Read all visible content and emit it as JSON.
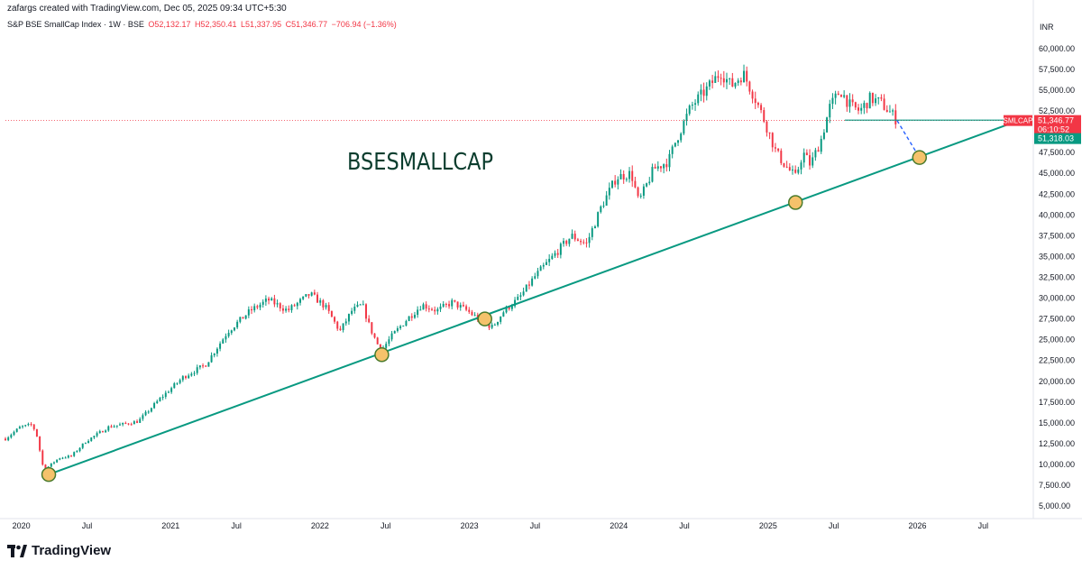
{
  "header": {
    "credit": "zafargs created with TradingView.com, Dec 05, 2025 09:34 UTC+5:30"
  },
  "legend": {
    "symbol": "S&P BSE SmallCap Index · 1W · BSE",
    "open": "O52,132.17",
    "high": "H52,350.41",
    "low": "L51,337.95",
    "close": "C51,346.77",
    "change": "−706.94 (−1.36%)"
  },
  "currency": "INR",
  "footer": {
    "brand": "TradingView"
  },
  "colors": {
    "up": "#089981",
    "down": "#f23645",
    "trendline": "#089981",
    "horizontal": "#089981",
    "projection": "#2962ff",
    "marker_fill": "#f5c26b",
    "marker_stroke": "#4a7a2b",
    "annotation": "#0b3d2e"
  },
  "chart_data": {
    "type": "candlestick",
    "annotation": "BSESMALLCAP",
    "ylim": [
      3500,
      61500
    ],
    "y_ticks": [
      "5,000.00",
      "7,500.00",
      "10,000.00",
      "12,500.00",
      "15,000.00",
      "17,500.00",
      "20,000.00",
      "22,500.00",
      "25,000.00",
      "27,500.00",
      "30,000.00",
      "32,500.00",
      "35,000.00",
      "37,500.00",
      "40,000.00",
      "42,500.00",
      "45,000.00",
      "47,500.00",
      "50,000.00",
      "52,500.00",
      "55,000.00",
      "57,500.00",
      "60,000.00"
    ],
    "x_ticks": [
      {
        "label": "2020",
        "date": 2020.0
      },
      {
        "label": "Jul",
        "date": 2020.5
      },
      {
        "label": "2021",
        "date": 2021.0
      },
      {
        "label": "Jul",
        "date": 2021.5
      },
      {
        "label": "2022",
        "date": 2022.0
      },
      {
        "label": "Jul",
        "date": 2022.5
      },
      {
        "label": "2023",
        "date": 2023.0
      },
      {
        "label": "Jul",
        "date": 2023.5
      },
      {
        "label": "2024",
        "date": 2024.0
      },
      {
        "label": "Jul",
        "date": 2024.5
      },
      {
        "label": "2025",
        "date": 2025.0
      },
      {
        "label": "Jul",
        "date": 2025.5
      },
      {
        "label": "2026",
        "date": 2026.0
      },
      {
        "label": "Jul",
        "date": 2026.5
      }
    ],
    "x_range": [
      2019.96,
      2026.83
    ],
    "price_path": [
      [
        2019.96,
        13100
      ],
      [
        2020.06,
        14500
      ],
      [
        2020.14,
        14800
      ],
      [
        2020.17,
        13500
      ],
      [
        2020.22,
        9000
      ],
      [
        2020.25,
        9800
      ],
      [
        2020.32,
        10800
      ],
      [
        2020.4,
        11000
      ],
      [
        2020.5,
        12800
      ],
      [
        2020.65,
        14500
      ],
      [
        2020.85,
        15200
      ],
      [
        2021.0,
        18000
      ],
      [
        2021.15,
        20500
      ],
      [
        2021.3,
        22000
      ],
      [
        2021.45,
        26000
      ],
      [
        2021.6,
        28500
      ],
      [
        2021.72,
        29800
      ],
      [
        2021.85,
        28500
      ],
      [
        2022.0,
        30500
      ],
      [
        2022.1,
        29000
      ],
      [
        2022.2,
        26000
      ],
      [
        2022.28,
        28500
      ],
      [
        2022.35,
        29200
      ],
      [
        2022.4,
        26500
      ],
      [
        2022.45,
        24500
      ],
      [
        2022.48,
        23800
      ],
      [
        2022.55,
        25500
      ],
      [
        2022.65,
        27500
      ],
      [
        2022.75,
        29200
      ],
      [
        2022.85,
        28500
      ],
      [
        2022.95,
        29500
      ],
      [
        2023.05,
        28500
      ],
      [
        2023.15,
        27200
      ],
      [
        2023.22,
        26500
      ],
      [
        2023.3,
        28500
      ],
      [
        2023.4,
        30000
      ],
      [
        2023.5,
        32500
      ],
      [
        2023.65,
        35500
      ],
      [
        2023.75,
        37500
      ],
      [
        2023.85,
        36500
      ],
      [
        2023.95,
        41000
      ],
      [
        2024.05,
        44500
      ],
      [
        2024.15,
        45000
      ],
      [
        2024.2,
        41500
      ],
      [
        2024.3,
        45500
      ],
      [
        2024.4,
        46500
      ],
      [
        2024.45,
        49000
      ],
      [
        2024.55,
        53000
      ],
      [
        2024.65,
        55000
      ],
      [
        2024.75,
        57200
      ],
      [
        2024.82,
        55500
      ],
      [
        2024.9,
        57000
      ],
      [
        2024.98,
        54000
      ],
      [
        2025.05,
        51000
      ],
      [
        2025.12,
        47500
      ],
      [
        2025.18,
        46000
      ],
      [
        2025.25,
        44500
      ],
      [
        2025.3,
        47500
      ],
      [
        2025.35,
        46000
      ],
      [
        2025.42,
        49000
      ],
      [
        2025.48,
        53000
      ],
      [
        2025.55,
        55000
      ],
      [
        2025.62,
        53000
      ],
      [
        2025.68,
        52500
      ],
      [
        2025.75,
        54000
      ],
      [
        2025.82,
        53500
      ],
      [
        2025.9,
        52000
      ],
      [
        2025.93,
        51346.77
      ]
    ],
    "trendline": {
      "points": [
        [
          2020.25,
          8800
        ],
        [
          2022.48,
          23200
        ],
        [
          2023.17,
          27500
        ],
        [
          2025.25,
          41500
        ],
        [
          2026.08,
          46900
        ]
      ],
      "extend_to": [
        2026.74,
        51318.03
      ]
    },
    "touch_points": [
      [
        2020.25,
        8800
      ],
      [
        2022.48,
        23200
      ],
      [
        2023.17,
        27500
      ],
      [
        2025.25,
        41500
      ],
      [
        2026.08,
        46900
      ]
    ],
    "horizontal_level": {
      "from": 2025.58,
      "to": 2026.74,
      "value": 51400
    },
    "projection": {
      "from": [
        2025.93,
        51350
      ],
      "to": [
        2026.08,
        46900
      ]
    },
    "last_price_line": 51346.77,
    "price_labels": {
      "symbol_tag": "SMLCAP",
      "last_price": "51,346.77",
      "countdown": "06:10:52",
      "level_price": "51,318.03"
    }
  }
}
